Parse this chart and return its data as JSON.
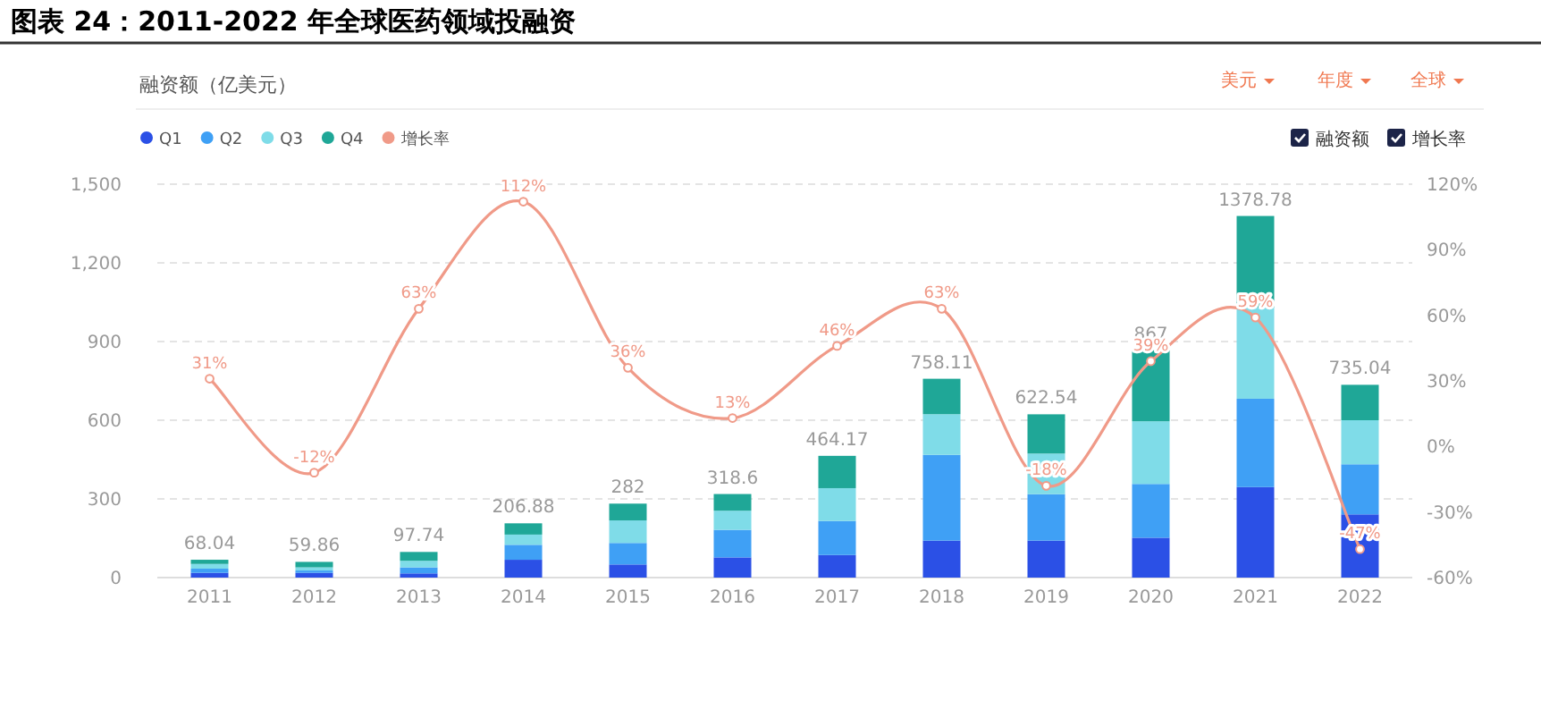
{
  "chart_data": {
    "type": "bar",
    "title": "图表 24：2011-2022 年全球医药领域投融资",
    "ylabel": "融资额（亿美元）",
    "annotations": [
      "美元",
      "年度",
      "全球",
      "融资额",
      "增长率"
    ],
    "categories": [
      "2011",
      "2012",
      "2013",
      "2014",
      "2015",
      "2016",
      "2017",
      "2018",
      "2019",
      "2020",
      "2021",
      "2022"
    ],
    "stacked": true,
    "series": [
      {
        "name": "Q1",
        "color": "#2b50e6",
        "values": [
          18,
          18,
          16,
          68,
          50,
          77,
          86,
          141,
          141,
          152,
          345,
          241
        ]
      },
      {
        "name": "Q2",
        "color": "#3fa0f5",
        "values": [
          16,
          9,
          23,
          57,
          82,
          105,
          130,
          327,
          177,
          205,
          337,
          191
        ]
      },
      {
        "name": "Q3",
        "color": "#7fdce8",
        "values": [
          18,
          12,
          25,
          39,
          86,
          73,
          125,
          155,
          155,
          239,
          348,
          168
        ]
      },
      {
        "name": "Q4",
        "color": "#1fa797",
        "values": [
          16.04,
          20.86,
          33.74,
          42.88,
          64,
          63.6,
          123.17,
          135.11,
          149.54,
          271,
          348.78,
          135.04
        ]
      },
      {
        "name": "增长率",
        "type": "line",
        "axis": "y2",
        "color": "#f09a88",
        "marker": "circle",
        "values": [
          31,
          -12,
          63,
          112,
          36,
          13,
          46,
          63,
          -18,
          39,
          59,
          -47
        ],
        "value_labels": [
          "31%",
          "-12%",
          "63%",
          "112%",
          "36%",
          "13%",
          "46%",
          "63%",
          "-18%",
          "39%",
          "59%",
          "-47%"
        ]
      }
    ],
    "totals": [
      "68.04",
      "59.86",
      "97.74",
      "206.88",
      "282",
      "318.6",
      "464.17",
      "758.11",
      "622.54",
      "867",
      "1378.78",
      "735.04"
    ],
    "ylim": [
      0,
      1500
    ],
    "yticks": [
      0,
      300,
      600,
      900,
      {
        "value": 1200,
        "label": "1,200"
      },
      {
        "value": 1500,
        "label": "1,500"
      }
    ],
    "y2lim": [
      -60,
      120
    ],
    "y2ticks": [
      {
        "value": -60,
        "label": "-60%"
      },
      {
        "value": -30,
        "label": "-30%"
      },
      {
        "value": 0,
        "label": "0%"
      },
      {
        "value": 30,
        "label": "30%"
      },
      {
        "value": 60,
        "label": "60%"
      },
      {
        "value": 90,
        "label": "90%"
      },
      {
        "value": 120,
        "label": "120%"
      }
    ],
    "grid": "y",
    "legend": "top left"
  }
}
